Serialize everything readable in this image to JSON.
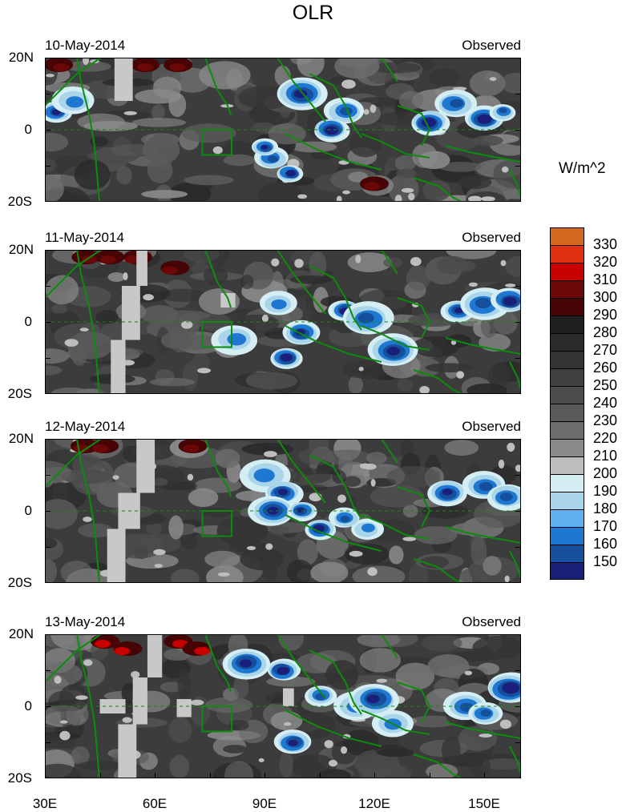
{
  "title": "OLR",
  "units": "W/m^2",
  "status_label": "Observed",
  "lat_labels": [
    "20N",
    "0",
    "20S"
  ],
  "lon_labels": [
    "30E",
    "60E",
    "90E",
    "120E",
    "150E"
  ],
  "panels": [
    {
      "date": "10-May-2014"
    },
    {
      "date": "11-May-2014"
    },
    {
      "date": "12-May-2014"
    },
    {
      "date": "13-May-2014"
    }
  ],
  "colorbar": {
    "levels": [
      "330",
      "320",
      "310",
      "300",
      "290",
      "280",
      "270",
      "260",
      "250",
      "240",
      "230",
      "220",
      "210",
      "200",
      "190",
      "180",
      "170",
      "160",
      "150"
    ],
    "colors": [
      "#d2691e",
      "#e03010",
      "#c80000",
      "#6a0808",
      "#460404",
      "#202020",
      "#2a2a2a",
      "#343434",
      "#404040",
      "#4c4c4c",
      "#5a5a5a",
      "#6c6c6c",
      "#8a8a8a",
      "#bdbdbd",
      "#d4eef4",
      "#a9d4ea",
      "#60aff0",
      "#1e78d2",
      "#16509c",
      "#1a1f7a"
    ]
  },
  "chart_data": {
    "type": "heatmap",
    "variable": "OLR",
    "units": "W/m^2",
    "lon_range": [
      30,
      160
    ],
    "lat_range": [
      -20,
      20
    ],
    "panel_dates": [
      "10-May-2014",
      "11-May-2014",
      "12-May-2014",
      "13-May-2014"
    ],
    "color_levels": [
      150,
      160,
      170,
      180,
      190,
      200,
      210,
      220,
      230,
      240,
      250,
      260,
      270,
      280,
      290,
      300,
      310,
      320,
      330
    ],
    "box_region": {
      "lon": [
        73,
        81
      ],
      "lat": [
        -7,
        0
      ]
    }
  }
}
